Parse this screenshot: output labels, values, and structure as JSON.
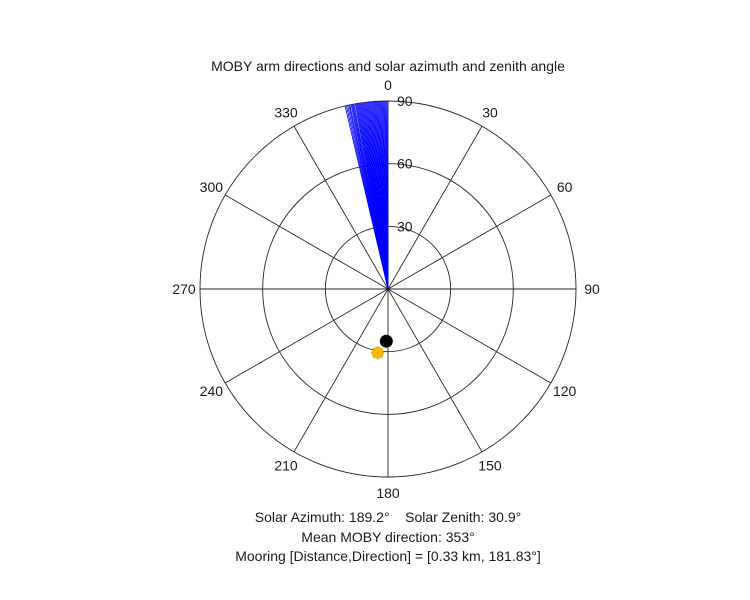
{
  "chart_data": {
    "type": "polar",
    "title": "MOBY arm directions and solar azimuth and zenith angle",
    "angle_ticks": [
      0,
      30,
      60,
      90,
      120,
      150,
      180,
      210,
      240,
      270,
      300,
      330
    ],
    "angle_tick_labels": [
      "0",
      "30",
      "60",
      "90",
      "120",
      "150",
      "180",
      "210",
      "240",
      "270",
      "300",
      "330"
    ],
    "radial_ticks": [
      30,
      60,
      90
    ],
    "radial_tick_labels": [
      "30",
      "60",
      "90"
    ],
    "rlim": [
      0,
      90
    ],
    "angle_direction": "clockwise",
    "zero_location": "top",
    "grid": true,
    "series": [
      {
        "kind": "rays",
        "color": "#0000ff",
        "length": 90,
        "directions": [
          346.8,
          347.2,
          347.6,
          348.0,
          348.3,
          348.7,
          349.0,
          349.3,
          349.6,
          350.0,
          350.3,
          350.6,
          350.9,
          351.2,
          351.5,
          351.8,
          352.1,
          352.4,
          352.7,
          353.0,
          353.3,
          353.6,
          353.9,
          354.2,
          354.5,
          354.8,
          355.1,
          355.4,
          355.7,
          356.0,
          356.3,
          356.6,
          356.9,
          357.2,
          357.5,
          357.8,
          358.1,
          358.4,
          358.7,
          359.0,
          359.3,
          359.6,
          359.9
        ]
      },
      {
        "kind": "marker",
        "label": "sun",
        "direction": 189.2,
        "r": 30.9,
        "color": "#ffc000",
        "marker": "star"
      },
      {
        "kind": "marker",
        "label": "mooring",
        "direction": 181.83,
        "r": 25,
        "color": "#000000",
        "marker": "circle"
      }
    ]
  },
  "captions": {
    "line1": "Solar Azimuth: 189.2°    Solar Zenith: 30.9°",
    "line2": "Mean MOBY direction: 353°",
    "line3": "Mooring [Distance,Direction] = [0.33 km, 181.83°]"
  }
}
